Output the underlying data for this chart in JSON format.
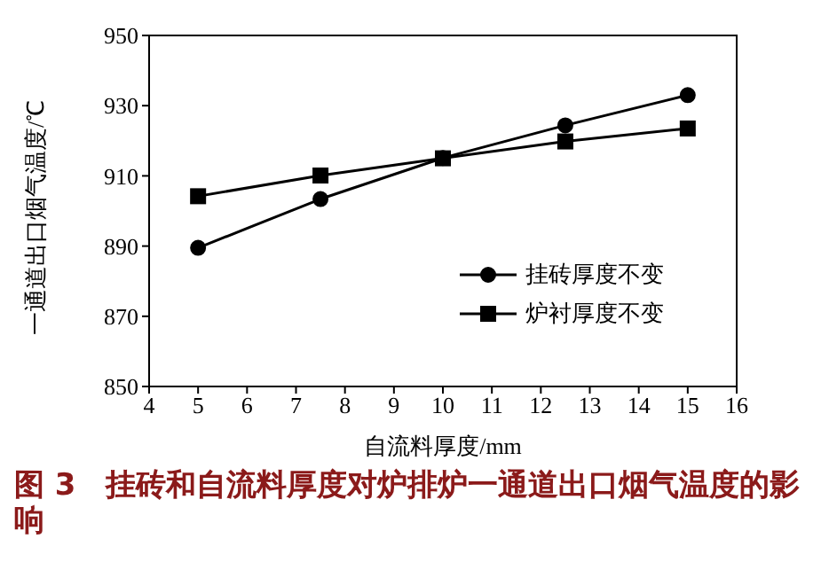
{
  "chart_data": {
    "type": "line",
    "title": "图 3　挂砖和自流料厚度对炉排炉一通道出口烟气温度的影响",
    "xlabel": "自流料厚度/mm",
    "ylabel": "一通道出口烟气温度/℃",
    "x": [
      5,
      7.5,
      10,
      12.5,
      15
    ],
    "series": [
      {
        "name": "挂砖厚度不变",
        "color": "#000000",
        "marker": "circle",
        "values": [
          889.5,
          903.4,
          915.1,
          924.4,
          933
        ]
      },
      {
        "name": "炉衬厚度不变",
        "color": "#000000",
        "marker": "square",
        "values": [
          904.2,
          910.1,
          915,
          919.8,
          923.5
        ]
      }
    ],
    "xlim": [
      4,
      16
    ],
    "xticks": [
      4,
      5,
      6,
      7,
      8,
      9,
      10,
      11,
      12,
      13,
      14,
      15,
      16
    ],
    "ylim": [
      850,
      950
    ],
    "yticks": [
      850,
      870,
      890,
      910,
      930,
      950
    ],
    "legend": "bottom right"
  }
}
